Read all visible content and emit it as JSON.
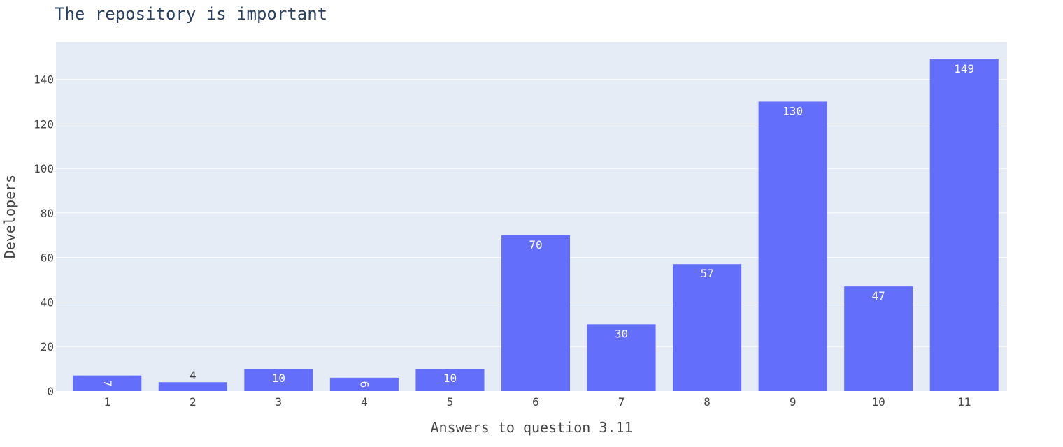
{
  "chart_data": {
    "type": "bar",
    "title": "The repository is important",
    "xlabel": "Answers to question 3.11",
    "ylabel": "Developers",
    "categories": [
      "1",
      "2",
      "3",
      "4",
      "5",
      "6",
      "7",
      "8",
      "9",
      "10",
      "11"
    ],
    "values": [
      7,
      4,
      10,
      6,
      10,
      70,
      30,
      57,
      130,
      47,
      149
    ],
    "ylim": [
      0,
      156.8
    ],
    "yticks": [
      0,
      20,
      40,
      60,
      80,
      100,
      120,
      140
    ],
    "grid": true,
    "colors": {
      "bar": "#636efa",
      "plot_bg": "#e5ecf6",
      "grid": "#ffffff",
      "text": "#444444"
    }
  }
}
